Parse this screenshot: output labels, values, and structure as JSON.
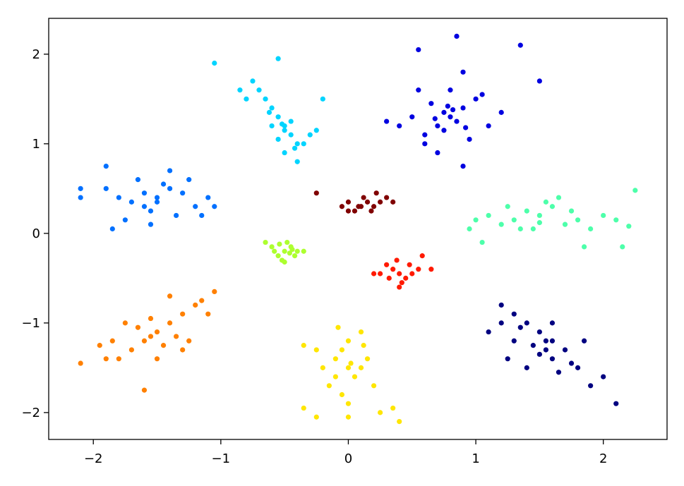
{
  "chart_data": {
    "type": "scatter",
    "title": "",
    "xlabel": "",
    "ylabel": "",
    "xlim": [
      -2.35,
      2.5
    ],
    "ylim": [
      -2.3,
      2.4
    ],
    "grid": false,
    "x_ticks": [
      {
        "value": -2,
        "label": "−2"
      },
      {
        "value": -1,
        "label": "−1"
      },
      {
        "value": 0,
        "label": "0"
      },
      {
        "value": 1,
        "label": "1"
      },
      {
        "value": 2,
        "label": "2"
      }
    ],
    "y_ticks": [
      {
        "value": -2,
        "label": "−2"
      },
      {
        "value": -1,
        "label": "−1"
      },
      {
        "value": 0,
        "label": "0"
      },
      {
        "value": 1,
        "label": "1"
      },
      {
        "value": 2,
        "label": "2"
      }
    ],
    "series": [
      {
        "color": "#000080",
        "points": [
          [
            1.2,
            -0.8
          ],
          [
            1.3,
            -0.9
          ],
          [
            1.4,
            -1.0
          ],
          [
            1.5,
            -1.1
          ],
          [
            1.6,
            -1.2
          ],
          [
            1.7,
            -1.3
          ],
          [
            1.8,
            -1.5
          ],
          [
            1.9,
            -1.7
          ],
          [
            2.0,
            -1.6
          ],
          [
            2.1,
            -1.9
          ],
          [
            1.1,
            -1.1
          ],
          [
            1.3,
            -1.2
          ],
          [
            1.5,
            -1.35
          ],
          [
            1.6,
            -1.4
          ],
          [
            1.45,
            -1.25
          ],
          [
            1.55,
            -1.3
          ],
          [
            1.35,
            -1.05
          ],
          [
            1.75,
            -1.45
          ],
          [
            1.25,
            -1.4
          ],
          [
            1.65,
            -1.55
          ],
          [
            1.85,
            -1.2
          ],
          [
            1.4,
            -1.5
          ],
          [
            1.2,
            -1.0
          ],
          [
            1.6,
            -1.0
          ],
          [
            1.55,
            -1.2
          ]
        ]
      },
      {
        "color": "#0000e0",
        "points": [
          [
            0.8,
            1.3
          ],
          [
            0.7,
            1.2
          ],
          [
            0.9,
            1.4
          ],
          [
            0.6,
            1.1
          ],
          [
            1.0,
            1.5
          ],
          [
            0.75,
            1.35
          ],
          [
            0.85,
            1.25
          ],
          [
            0.5,
            1.3
          ],
          [
            1.1,
            1.2
          ],
          [
            0.65,
            1.45
          ],
          [
            0.95,
            1.05
          ],
          [
            0.55,
            1.6
          ],
          [
            1.2,
            1.35
          ],
          [
            0.4,
            1.2
          ],
          [
            0.8,
            1.6
          ],
          [
            0.7,
            0.9
          ],
          [
            1.05,
            1.55
          ],
          [
            0.6,
            1.0
          ],
          [
            0.9,
            1.8
          ],
          [
            1.35,
            2.1
          ],
          [
            0.85,
            2.2
          ],
          [
            0.55,
            2.05
          ],
          [
            1.5,
            1.7
          ],
          [
            0.9,
            0.75
          ],
          [
            0.3,
            1.25
          ],
          [
            0.75,
            1.15
          ],
          [
            0.82,
            1.38
          ],
          [
            0.68,
            1.28
          ],
          [
            0.92,
            1.18
          ],
          [
            0.78,
            1.42
          ]
        ]
      },
      {
        "color": "#0070ff",
        "points": [
          [
            -1.5,
            0.4
          ],
          [
            -1.6,
            0.3
          ],
          [
            -1.4,
            0.5
          ],
          [
            -1.7,
            0.35
          ],
          [
            -1.3,
            0.45
          ],
          [
            -1.55,
            0.25
          ],
          [
            -1.45,
            0.55
          ],
          [
            -1.8,
            0.4
          ],
          [
            -1.2,
            0.3
          ],
          [
            -1.65,
            0.6
          ],
          [
            -1.35,
            0.2
          ],
          [
            -1.9,
            0.5
          ],
          [
            -1.1,
            0.4
          ],
          [
            -1.75,
            0.15
          ],
          [
            -1.25,
            0.6
          ],
          [
            -2.1,
            0.5
          ],
          [
            -2.1,
            0.4
          ],
          [
            -1.05,
            0.3
          ],
          [
            -1.9,
            0.75
          ],
          [
            -1.55,
            0.1
          ],
          [
            -1.4,
            0.7
          ],
          [
            -1.85,
            0.05
          ],
          [
            -1.15,
            0.2
          ],
          [
            -1.5,
            0.35
          ],
          [
            -1.6,
            0.45
          ]
        ]
      },
      {
        "color": "#00d4ff",
        "points": [
          [
            -0.6,
            1.4
          ],
          [
            -0.5,
            1.2
          ],
          [
            -0.55,
            1.3
          ],
          [
            -0.45,
            1.1
          ],
          [
            -0.65,
            1.5
          ],
          [
            -0.4,
            1.0
          ],
          [
            -0.7,
            1.6
          ],
          [
            -0.5,
            0.9
          ],
          [
            -0.35,
            1.0
          ],
          [
            -0.75,
            1.7
          ],
          [
            -0.6,
            1.2
          ],
          [
            -0.45,
            1.25
          ],
          [
            -0.55,
            1.05
          ],
          [
            -0.8,
            1.5
          ],
          [
            -0.4,
            0.8
          ],
          [
            -0.3,
            1.1
          ],
          [
            -1.05,
            1.9
          ],
          [
            -0.55,
            1.95
          ],
          [
            -0.2,
            1.5
          ],
          [
            -0.85,
            1.6
          ],
          [
            -0.25,
            1.15
          ],
          [
            -0.5,
            1.15
          ],
          [
            -0.52,
            1.22
          ],
          [
            -0.62,
            1.35
          ],
          [
            -0.42,
            0.95
          ]
        ]
      },
      {
        "color": "#4dffaa",
        "points": [
          [
            1.5,
            0.2
          ],
          [
            1.3,
            0.15
          ],
          [
            1.7,
            0.1
          ],
          [
            1.4,
            0.25
          ],
          [
            1.6,
            0.3
          ],
          [
            1.2,
            0.1
          ],
          [
            1.8,
            0.15
          ],
          [
            1.1,
            0.2
          ],
          [
            1.9,
            0.05
          ],
          [
            1.45,
            0.05
          ],
          [
            1.55,
            0.35
          ],
          [
            1.0,
            0.15
          ],
          [
            2.0,
            0.2
          ],
          [
            1.25,
            0.3
          ],
          [
            1.75,
            0.25
          ],
          [
            0.95,
            0.05
          ],
          [
            2.1,
            0.15
          ],
          [
            2.25,
            0.48
          ],
          [
            2.2,
            0.08
          ],
          [
            2.15,
            -0.15
          ],
          [
            1.05,
            -0.1
          ],
          [
            1.85,
            -0.15
          ],
          [
            1.65,
            0.4
          ],
          [
            1.35,
            0.05
          ],
          [
            1.5,
            0.12
          ]
        ]
      },
      {
        "color": "#adff2f",
        "points": [
          [
            -0.5,
            -0.2
          ],
          [
            -0.45,
            -0.15
          ],
          [
            -0.55,
            -0.25
          ],
          [
            -0.4,
            -0.2
          ],
          [
            -0.6,
            -0.15
          ],
          [
            -0.48,
            -0.1
          ],
          [
            -0.52,
            -0.3
          ],
          [
            -0.42,
            -0.25
          ],
          [
            -0.58,
            -0.2
          ],
          [
            -0.35,
            -0.2
          ],
          [
            -0.65,
            -0.1
          ],
          [
            -0.5,
            -0.32
          ],
          [
            -0.44,
            -0.18
          ],
          [
            -0.54,
            -0.12
          ],
          [
            -0.46,
            -0.22
          ]
        ]
      },
      {
        "color": "#ffe600",
        "points": [
          [
            0.0,
            -1.5
          ],
          [
            -0.1,
            -1.4
          ],
          [
            0.05,
            -1.6
          ],
          [
            -0.05,
            -1.3
          ],
          [
            0.1,
            -1.5
          ],
          [
            -0.15,
            -1.7
          ],
          [
            0.0,
            -1.2
          ],
          [
            -0.2,
            -1.5
          ],
          [
            0.15,
            -1.4
          ],
          [
            -0.05,
            -1.8
          ],
          [
            0.1,
            -1.1
          ],
          [
            -0.25,
            -1.3
          ],
          [
            0.2,
            -1.7
          ],
          [
            0.0,
            -1.9
          ],
          [
            -0.1,
            -1.6
          ],
          [
            -0.35,
            -1.25
          ],
          [
            0.35,
            -1.95
          ],
          [
            0.25,
            -2.0
          ],
          [
            0.4,
            -2.1
          ],
          [
            -0.25,
            -2.05
          ],
          [
            -0.35,
            -1.95
          ],
          [
            0.0,
            -2.05
          ],
          [
            0.12,
            -1.25
          ],
          [
            -0.08,
            -1.05
          ],
          [
            0.02,
            -1.45
          ]
        ]
      },
      {
        "color": "#ff8000",
        "points": [
          [
            -1.5,
            -1.1
          ],
          [
            -1.4,
            -1.0
          ],
          [
            -1.6,
            -1.2
          ],
          [
            -1.3,
            -0.9
          ],
          [
            -1.7,
            -1.3
          ],
          [
            -1.45,
            -1.25
          ],
          [
            -1.55,
            -0.95
          ],
          [
            -1.2,
            -0.8
          ],
          [
            -1.8,
            -1.4
          ],
          [
            -1.35,
            -1.15
          ],
          [
            -1.65,
            -1.05
          ],
          [
            -1.25,
            -1.2
          ],
          [
            -1.75,
            -1.0
          ],
          [
            -1.15,
            -0.75
          ],
          [
            -1.85,
            -1.2
          ],
          [
            -1.1,
            -0.9
          ],
          [
            -1.9,
            -1.4
          ],
          [
            -2.1,
            -1.45
          ],
          [
            -1.6,
            -1.75
          ],
          [
            -1.05,
            -0.65
          ],
          [
            -1.95,
            -1.25
          ],
          [
            -1.4,
            -0.7
          ],
          [
            -1.5,
            -1.4
          ],
          [
            -1.3,
            -1.3
          ],
          [
            -1.55,
            -1.15
          ]
        ]
      },
      {
        "color": "#ff1a00",
        "points": [
          [
            0.4,
            -0.45
          ],
          [
            0.35,
            -0.4
          ],
          [
            0.45,
            -0.5
          ],
          [
            0.3,
            -0.35
          ],
          [
            0.5,
            -0.45
          ],
          [
            0.42,
            -0.55
          ],
          [
            0.38,
            -0.3
          ],
          [
            0.25,
            -0.45
          ],
          [
            0.55,
            -0.4
          ],
          [
            0.4,
            -0.6
          ],
          [
            0.48,
            -0.35
          ],
          [
            0.32,
            -0.5
          ],
          [
            0.58,
            -0.25
          ],
          [
            0.65,
            -0.4
          ],
          [
            0.2,
            -0.45
          ]
        ]
      },
      {
        "color": "#800000",
        "points": [
          [
            0.1,
            0.3
          ],
          [
            0.15,
            0.35
          ],
          [
            0.05,
            0.25
          ],
          [
            0.2,
            0.3
          ],
          [
            0.12,
            0.4
          ],
          [
            0.08,
            0.3
          ],
          [
            0.18,
            0.25
          ],
          [
            0.0,
            0.35
          ],
          [
            0.25,
            0.35
          ],
          [
            -0.05,
            0.3
          ],
          [
            0.3,
            0.4
          ],
          [
            0.35,
            0.35
          ],
          [
            0.22,
            0.45
          ],
          [
            0.0,
            0.25
          ],
          [
            -0.25,
            0.45
          ]
        ]
      }
    ]
  }
}
